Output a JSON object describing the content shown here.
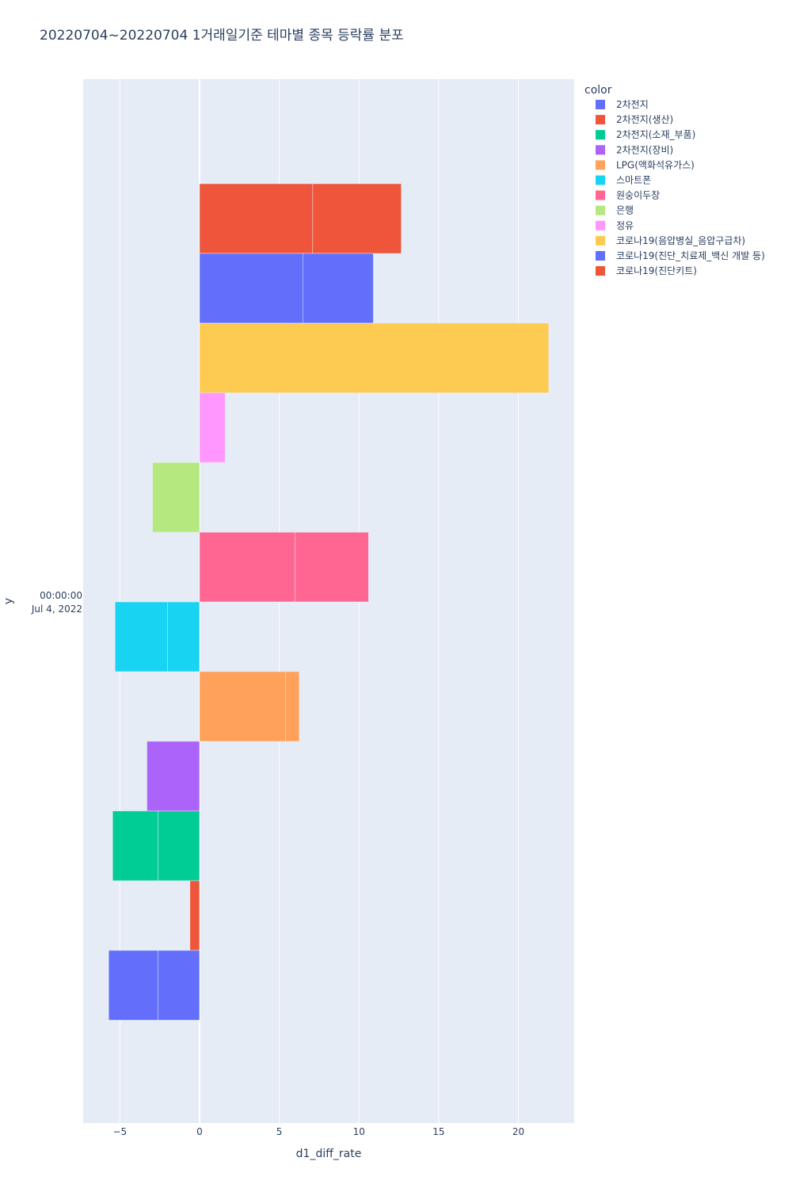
{
  "chart_data": {
    "type": "bar",
    "orientation": "horizontal",
    "barmode": "relative",
    "title": "20220704~20220704 1거래일기준 테마별 종목 등락률 분포",
    "xlabel": "d1_diff_rate",
    "ylabel": "y",
    "y_tick_label": [
      "00:00:00",
      "Jul 4, 2022"
    ],
    "xlim": [
      -7.3,
      23.5
    ],
    "x_ticks": [
      -5,
      0,
      5,
      10,
      15,
      20
    ],
    "x_tick_labels": [
      "−5",
      "0",
      "5",
      "10",
      "15",
      "20"
    ],
    "grid": true,
    "legend_position": "right",
    "legend_title": "color",
    "plot_bgcolor": "#E5ECF6",
    "series": [
      {
        "name": "2차전지",
        "color": "#636EFA",
        "values": [
          -2.6,
          -3.1
        ]
      },
      {
        "name": "2차전지(생산)",
        "color": "#EF553B",
        "values": [
          -0.6
        ]
      },
      {
        "name": "2차전지(소재_부품)",
        "color": "#00CC96",
        "values": [
          -2.6,
          -2.85
        ]
      },
      {
        "name": "2차전지(장비)",
        "color": "#AB63FA",
        "values": [
          -3.3
        ]
      },
      {
        "name": "LPG(액화석유가스)",
        "color": "#FFA15A",
        "values": [
          5.4,
          0.85
        ]
      },
      {
        "name": "스마트폰",
        "color": "#19D3F3",
        "values": [
          -2.0,
          -3.3
        ]
      },
      {
        "name": "원숭이두창",
        "color": "#FF6692",
        "values": [
          6.0,
          4.6
        ]
      },
      {
        "name": "은행",
        "color": "#B6E880",
        "values": [
          -2.95
        ]
      },
      {
        "name": "정유",
        "color": "#FF97FF",
        "values": [
          1.6
        ]
      },
      {
        "name": "코로나19(음압병실_음압구급차)",
        "color": "#FECB52",
        "values": [
          21.9
        ]
      },
      {
        "name": "코로나19(진단_치료제_백신 개발 등)",
        "color": "#636EFA",
        "values": [
          6.5,
          4.4
        ]
      },
      {
        "name": "코로나19(진단키트)",
        "color": "#EF553B",
        "values": [
          7.1,
          5.55
        ]
      }
    ]
  }
}
